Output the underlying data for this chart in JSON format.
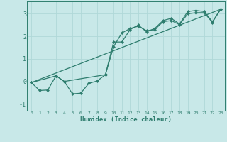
{
  "xlabel": "Humidex (Indice chaleur)",
  "bg_color": "#c8e8e8",
  "line_color": "#2e7d6e",
  "grid_color": "#b0d8d8",
  "xlim": [
    -0.5,
    23.5
  ],
  "ylim": [
    -1.3,
    3.55
  ],
  "xticks": [
    0,
    1,
    2,
    3,
    4,
    5,
    6,
    7,
    8,
    9,
    10,
    11,
    12,
    13,
    14,
    15,
    16,
    17,
    18,
    19,
    20,
    21,
    22,
    23
  ],
  "yticks": [
    -1,
    0,
    1,
    2,
    3
  ],
  "line1_x": [
    0,
    1,
    2,
    3,
    4,
    5,
    6,
    7,
    8,
    9,
    10,
    11,
    12,
    13,
    14,
    15,
    16,
    17,
    18,
    19,
    20,
    21,
    22,
    23
  ],
  "line1_y": [
    -0.05,
    -0.4,
    -0.38,
    0.25,
    0.0,
    -0.55,
    -0.52,
    -0.08,
    0.02,
    0.3,
    1.55,
    2.15,
    2.35,
    2.45,
    2.25,
    2.3,
    2.65,
    2.7,
    2.52,
    3.0,
    3.05,
    3.05,
    2.62,
    3.2
  ],
  "line2_x": [
    0,
    3,
    4,
    9,
    10,
    11,
    12,
    13,
    14,
    15,
    16,
    17,
    18,
    19,
    20,
    21,
    22,
    23
  ],
  "line2_y": [
    -0.05,
    0.25,
    0.0,
    0.3,
    1.75,
    1.75,
    2.3,
    2.5,
    2.2,
    2.35,
    2.7,
    2.8,
    2.55,
    3.1,
    3.15,
    3.1,
    2.65,
    3.2
  ],
  "line3_x": [
    0,
    23
  ],
  "line3_y": [
    -0.05,
    3.2
  ]
}
